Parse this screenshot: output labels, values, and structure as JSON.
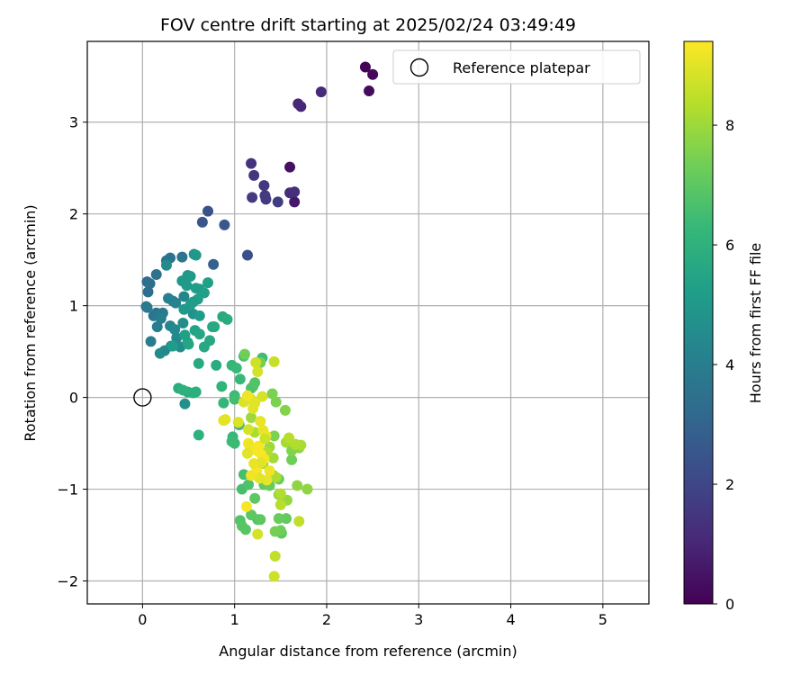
{
  "chart_data": {
    "type": "scatter",
    "title": "FOV centre drift starting at 2025/02/24 03:49:49",
    "xlabel": "Angular distance from reference (arcmin)",
    "ylabel": "Rotation from reference (arcmin)",
    "xlim": [
      -0.6,
      5.5
    ],
    "ylim": [
      -2.25,
      3.88
    ],
    "xticks": [
      0,
      1,
      2,
      3,
      4,
      5
    ],
    "yticks": [
      -2,
      -1,
      0,
      1,
      2,
      3
    ],
    "grid": true,
    "legend": {
      "placement": "top-right",
      "entries": [
        "Reference platepar"
      ]
    },
    "reference_point": {
      "x": 0,
      "y": 0
    },
    "colorbar": {
      "label": "Hours from first FF file",
      "colormap": "viridis",
      "range": [
        0,
        9.4
      ],
      "ticks": [
        0,
        2,
        4,
        6,
        8
      ],
      "stops": [
        "#440154",
        "#482878",
        "#3e4989",
        "#31688e",
        "#26828e",
        "#1f9e89",
        "#35b779",
        "#6ece58",
        "#b5de2b",
        "#fde725"
      ]
    },
    "series": [
      {
        "x": [
          2.42,
          2.5,
          2.46,
          1.72,
          1.69,
          1.94,
          1.6,
          1.65
        ],
        "y": [
          3.6,
          3.52,
          3.34,
          3.17,
          3.2,
          3.33,
          2.51,
          2.13
        ],
        "hours": [
          0.1,
          0.2,
          0.3,
          1.0,
          1.05,
          1.1,
          0.4,
          0.6
        ]
      },
      {
        "x": [
          1.18,
          1.21,
          1.32,
          1.19,
          1.33,
          1.34,
          1.47,
          1.6,
          1.65
        ],
        "y": [
          2.55,
          2.42,
          2.31,
          2.18,
          2.2,
          2.16,
          2.13,
          2.23,
          2.24
        ],
        "hours": [
          1.4,
          1.5,
          1.5,
          1.6,
          1.6,
          1.6,
          1.7,
          1.2,
          1.3
        ]
      },
      {
        "x": [
          0.71,
          0.65,
          0.89,
          0.77,
          1.14
        ],
        "y": [
          2.03,
          1.91,
          1.88,
          1.45,
          1.55
        ],
        "hours": [
          2.4,
          2.5,
          2.6,
          2.9,
          2.3
        ]
      },
      {
        "x": [
          0.05,
          0.08,
          0.06,
          0.15,
          0.26,
          0.3,
          0.43,
          0.15,
          0.12,
          0.22,
          0.04,
          0.05,
          0.09,
          0.16,
          0.28,
          0.33,
          0.45,
          0.36,
          0.3,
          0.35,
          0.24,
          0.19,
          0.31,
          0.41,
          0.46,
          0.44,
          0.55,
          0.26,
          0.2,
          0.37
        ],
        "y": [
          1.26,
          1.24,
          1.15,
          1.34,
          1.49,
          1.52,
          1.53,
          0.92,
          0.89,
          0.92,
          0.99,
          0.98,
          0.61,
          0.77,
          1.08,
          1.05,
          1.1,
          1.03,
          0.78,
          0.74,
          0.51,
          0.48,
          0.56,
          0.55,
          -0.07,
          0.81,
          0.91,
          1.44,
          0.86,
          0.65
        ],
        "hours": [
          3.3,
          3.4,
          3.4,
          3.5,
          3.6,
          3.6,
          3.7,
          3.6,
          3.7,
          3.8,
          3.7,
          3.8,
          4.0,
          4.0,
          4.1,
          4.2,
          4.3,
          4.2,
          4.3,
          4.4,
          4.4,
          4.5,
          4.5,
          4.6,
          4.7,
          4.6,
          4.7,
          4.5,
          4.0,
          4.4
        ]
      },
      {
        "x": [
          0.56,
          0.58,
          0.49,
          0.52,
          0.43,
          0.48,
          0.58,
          0.62,
          0.71,
          0.67,
          0.6,
          0.55,
          0.52,
          0.45,
          0.62,
          0.57,
          0.62,
          0.73,
          0.67,
          0.49,
          0.39,
          0.55,
          0.61,
          0.8,
          0.87,
          0.92,
          0.76,
          0.78,
          0.5,
          0.33,
          0.46
        ],
        "y": [
          1.56,
          1.55,
          1.33,
          1.32,
          1.27,
          1.22,
          1.19,
          1.18,
          1.25,
          1.14,
          1.07,
          1.04,
          1.01,
          0.96,
          0.89,
          0.73,
          0.69,
          0.62,
          0.55,
          0.6,
          0.1,
          0.05,
          0.37,
          0.35,
          0.88,
          0.85,
          0.77,
          0.77,
          0.58,
          0.56,
          0.68
        ],
        "hours": [
          4.9,
          5.0,
          5.0,
          5.1,
          5.0,
          5.1,
          5.2,
          5.2,
          5.3,
          5.3,
          5.3,
          5.1,
          5.2,
          5.0,
          5.1,
          5.4,
          5.5,
          5.6,
          5.6,
          5.4,
          5.8,
          5.9,
          5.7,
          5.8,
          5.7,
          5.8,
          5.6,
          5.7,
          5.5,
          5.2,
          5.3
        ]
      },
      {
        "x": [
          0.49,
          0.44,
          0.58,
          0.61,
          0.86,
          0.88,
          0.97,
          0.98,
          1.02,
          0.97,
          1.0,
          1.05,
          1.1,
          1.08,
          1.15,
          1.25,
          1.06,
          1.08,
          1.12,
          1.18,
          1.22,
          1.28,
          1.32,
          1.42,
          1.38,
          1.48,
          1.51,
          1.56,
          1.62,
          1.5,
          1.48,
          1.44,
          1.3,
          1.1,
          1.06,
          1.0,
          1.0,
          1.18,
          1.2,
          1.22
        ],
        "y": [
          0.06,
          0.08,
          0.06,
          -0.41,
          0.12,
          -0.06,
          0.35,
          -0.43,
          0.32,
          -0.48,
          -0.5,
          -0.3,
          -0.84,
          -1.0,
          -0.95,
          -1.33,
          -1.34,
          -1.4,
          -1.44,
          -1.28,
          -1.1,
          -1.33,
          -0.95,
          -0.85,
          -0.96,
          -0.89,
          -1.48,
          -1.32,
          -0.68,
          -1.45,
          -1.32,
          -1.46,
          0.43,
          0.45,
          0.2,
          0.02,
          -0.02,
          0.1,
          0.12,
          0.16
        ],
        "hours": [
          5.9,
          6.0,
          5.9,
          6.0,
          6.1,
          6.2,
          6.2,
          6.3,
          6.3,
          6.4,
          6.4,
          6.5,
          6.6,
          6.6,
          6.7,
          6.8,
          6.8,
          6.9,
          6.9,
          7.0,
          7.0,
          7.0,
          7.1,
          7.1,
          7.2,
          7.2,
          7.0,
          7.1,
          7.3,
          7.3,
          7.2,
          7.4,
          6.5,
          6.6,
          6.3,
          6.4,
          6.5,
          6.6,
          6.7,
          6.8
        ]
      },
      {
        "x": [
          1.11,
          1.28,
          1.41,
          1.45,
          1.55,
          1.62,
          1.43,
          1.7,
          1.79,
          1.68,
          1.57,
          1.48,
          1.31,
          1.38,
          1.42,
          1.56,
          1.72,
          1.45,
          1.5,
          1.66,
          1.59,
          1.5,
          1.7,
          1.44,
          1.35,
          1.3,
          1.22,
          1.18
        ],
        "y": [
          0.47,
          0.38,
          0.04,
          -0.05,
          -0.14,
          -0.58,
          -0.42,
          -0.55,
          -1.0,
          -0.96,
          -1.12,
          -1.06,
          -0.72,
          -0.54,
          -0.66,
          -0.49,
          -0.52,
          -0.87,
          -1.05,
          -0.51,
          -0.44,
          -1.17,
          -1.35,
          -1.73,
          -0.6,
          -0.61,
          -0.38,
          -0.22
        ],
        "hours": [
          7.3,
          7.4,
          7.5,
          7.5,
          7.6,
          7.6,
          7.5,
          7.7,
          7.8,
          7.8,
          7.9,
          7.8,
          8.0,
          8.0,
          8.1,
          8.1,
          8.2,
          8.2,
          8.3,
          8.3,
          8.4,
          8.4,
          8.5,
          8.5,
          8.3,
          8.1,
          8.2,
          8.0
        ]
      },
      {
        "x": [
          1.43,
          1.23,
          1.25,
          1.3,
          1.15,
          1.18,
          1.22,
          1.2,
          1.28,
          1.31,
          1.34,
          1.15,
          1.17,
          1.24,
          1.29,
          1.32,
          1.26,
          1.24,
          1.38,
          1.35,
          1.27,
          1.14,
          1.13,
          1.25,
          1.43,
          0.9,
          0.88,
          1.04,
          1.15,
          1.33,
          1.29,
          1.21,
          1.1,
          1.14,
          1.18
        ],
        "y": [
          0.39,
          0.38,
          0.28,
          0.01,
          0.0,
          -0.02,
          -0.06,
          -0.12,
          -0.26,
          -0.36,
          -0.42,
          -0.5,
          -0.55,
          -0.58,
          -0.62,
          -0.67,
          -0.53,
          -0.8,
          -0.8,
          -0.9,
          -0.88,
          -0.61,
          -1.19,
          -1.49,
          -1.95,
          -0.24,
          -0.25,
          -0.27,
          -0.35,
          -0.45,
          -0.71,
          -0.72,
          -0.05,
          0.02,
          -0.85
        ],
        "hours": [
          8.6,
          8.7,
          8.8,
          8.8,
          8.9,
          8.9,
          9.0,
          9.0,
          9.1,
          9.1,
          9.2,
          9.2,
          9.2,
          9.3,
          9.3,
          9.3,
          9.3,
          9.3,
          9.2,
          9.1,
          9.0,
          9.0,
          9.3,
          8.8,
          8.7,
          9.1,
          9.0,
          8.9,
          8.8,
          8.7,
          9.0,
          9.1,
          8.9,
          9.2,
          9.2
        ]
      }
    ]
  }
}
